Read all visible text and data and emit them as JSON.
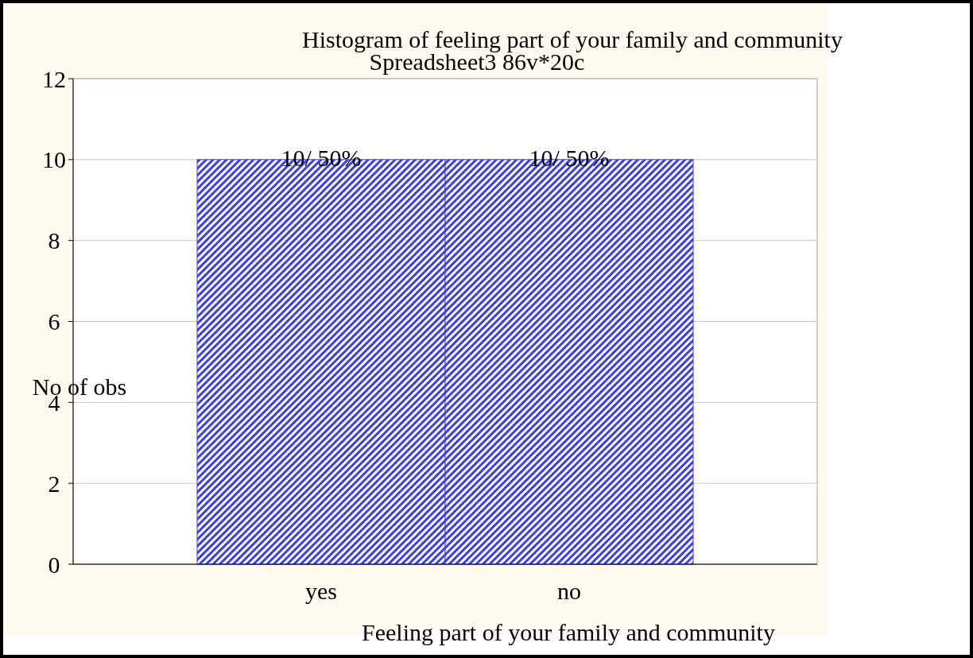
{
  "chart_data": {
    "type": "bar",
    "title": "Histogram of feeling part of your family and community",
    "subtitle": "Spreadsheet3 86v*20c",
    "xlabel": "Feeling part of your family and community",
    "ylabel": "No of obs",
    "categories": [
      "yes",
      "no"
    ],
    "values": [
      10,
      10
    ],
    "value_labels": [
      "10/ 50%",
      "10/ 50%"
    ],
    "color": "#3c3cf0",
    "ylim": [
      0,
      12
    ],
    "yticks": [
      0,
      2,
      4,
      6,
      8,
      10,
      12
    ],
    "grid": "y"
  }
}
